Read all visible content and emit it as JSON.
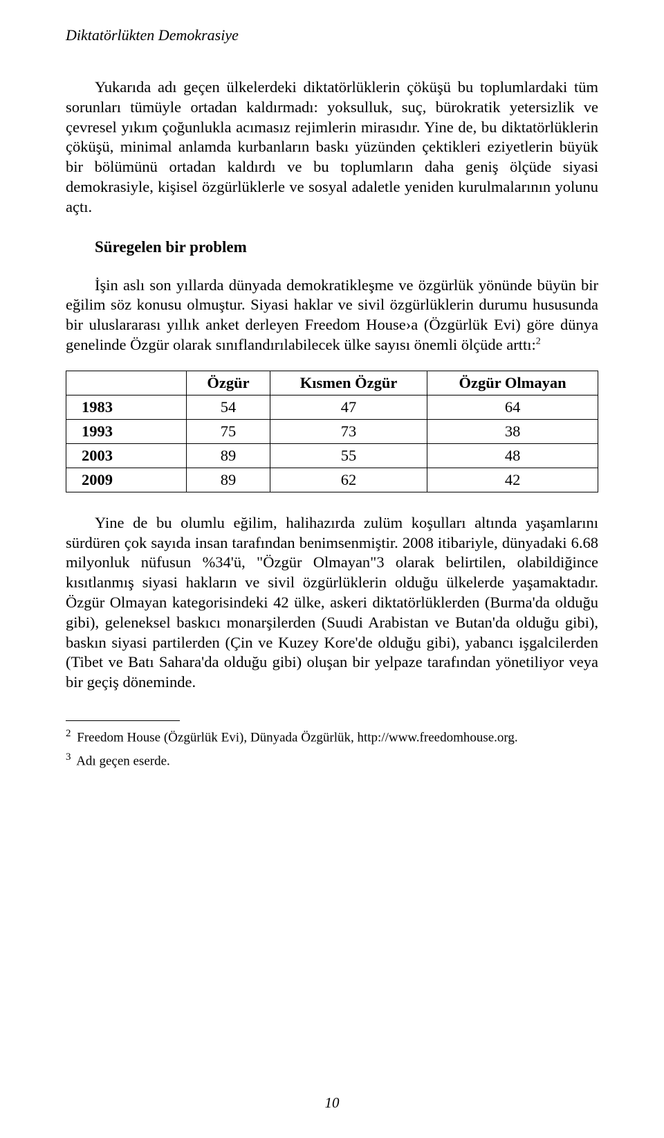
{
  "runningHead": "Diktatörlükten Demokrasiye",
  "para1": "Yukarıda adı geçen ülkelerdeki diktatörlüklerin çöküşü bu toplumlardaki tüm sorunları tümüyle ortadan kaldırmadı: yoksulluk, suç, bürokratik yetersizlik ve çevresel yıkım çoğunlukla acımasız rejimlerin mirasıdır. Yine de, bu diktatörlüklerin çöküşü, minimal anlamda kurbanların baskı yüzünden çektikleri eziyetlerin büyük bir bölümünü ortadan kaldırdı ve bu toplumların daha geniş ölçüde siyasi demokrasiyle, kişisel özgürlüklerle ve sosyal adaletle yeniden kurulmalarının yolunu açtı.",
  "sectionHead": "Süregelen bir problem",
  "para2_pre": "İşin aslı son yıllarda dünyada demokratikleşme ve özgürlük yönünde büyün bir eğilim söz konusu olmuştur. Siyasi haklar ve sivil özgürlüklerin durumu hususunda bir uluslararası yıllık anket derleyen Freedom House›a (Özgürlük Evi) göre dünya genelinde Özgür olarak sınıflandırılabilecek ülke sayısı önemli ölçüde arttı:",
  "para2_sup": "2",
  "table": {
    "headers": [
      "Özgür",
      "Kısmen Özgür",
      "Özgür Olmayan"
    ],
    "rows": [
      {
        "year": "1983",
        "values": [
          "54",
          "47",
          "64"
        ]
      },
      {
        "year": "1993",
        "values": [
          "75",
          "73",
          "38"
        ]
      },
      {
        "year": "2003",
        "values": [
          "89",
          "55",
          "48"
        ]
      },
      {
        "year": "2009",
        "values": [
          "89",
          "62",
          "42"
        ]
      }
    ]
  },
  "para3": "Yine de bu olumlu eğilim, halihazırda zulüm koşulları altında yaşamlarını sürdüren çok sayıda insan tarafından benimsenmiştir. 2008 itibariyle, dünyadaki 6.68 milyonluk nüfusun %34'ü, \"Özgür Olmayan\"3 olarak belirtilen, olabildiğince kısıtlanmış siyasi hakların ve sivil özgürlüklerin olduğu ülkelerde yaşamaktadır. Özgür Olmayan kategorisindeki 42 ülke, askeri diktatörlüklerden (Burma'da olduğu gibi), geleneksel baskıcı monarşilerden (Suudi Arabistan ve Butan'da olduğu gibi), baskın siyasi partilerden (Çin ve Kuzey Kore'de olduğu gibi), yabancı işgalcilerden (Tibet ve Batı Sahara'da olduğu gibi) oluşan bir yelpaze tarafından yönetiliyor veya bir geçiş döneminde.",
  "footnote2_sup": "2",
  "footnote2": " Freedom House (Özgürlük Evi), Dünyada Özgürlük, http://www.freedomhouse.org.",
  "footnote3_sup": "3",
  "footnote3": " Adı geçen eserde.",
  "pageNumber": "10"
}
